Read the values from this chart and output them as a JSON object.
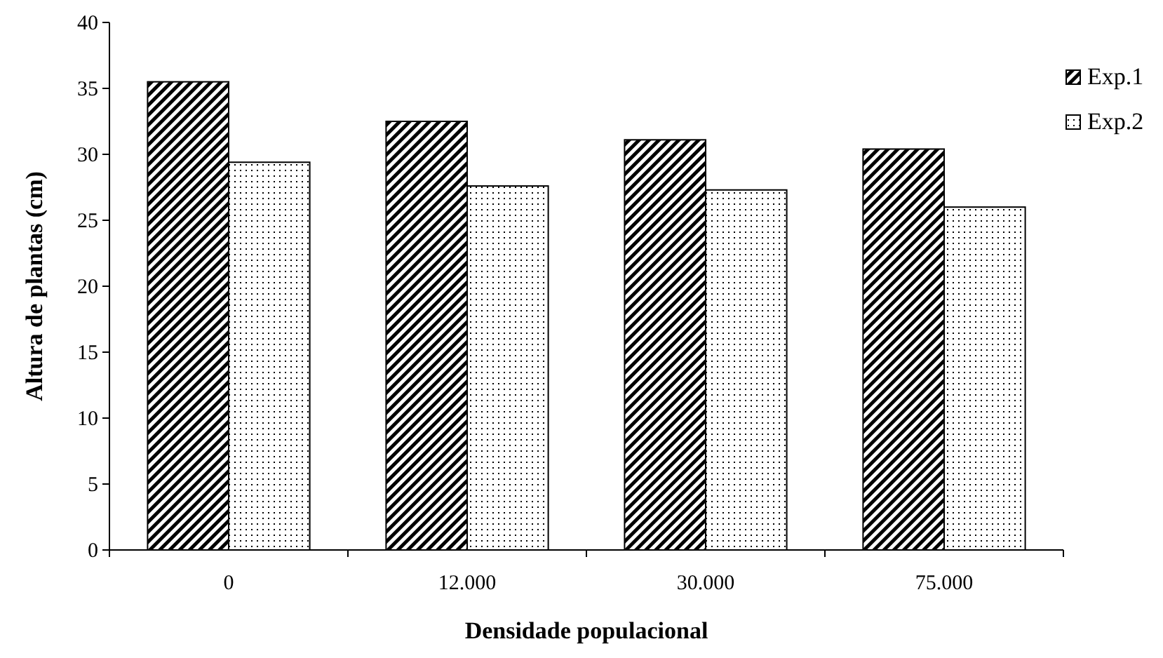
{
  "chart_data": {
    "type": "bar",
    "xlabel": "Densidade populacional",
    "ylabel": "Altura de plantas (cm)",
    "categories": [
      "0",
      "12.000",
      "30.000",
      "75.000"
    ],
    "series": [
      {
        "name": "Exp.1",
        "color": "#000000",
        "values": [
          35.5,
          32.5,
          31.1,
          30.4
        ]
      },
      {
        "name": "Exp.2",
        "color": "#000000",
        "values": [
          29.4,
          27.6,
          27.3,
          26.0
        ]
      }
    ],
    "ylim": [
      0,
      40
    ],
    "yticks": [
      0,
      5,
      10,
      15,
      20,
      25,
      30,
      35,
      40
    ],
    "grid": false,
    "legend": "top right"
  }
}
